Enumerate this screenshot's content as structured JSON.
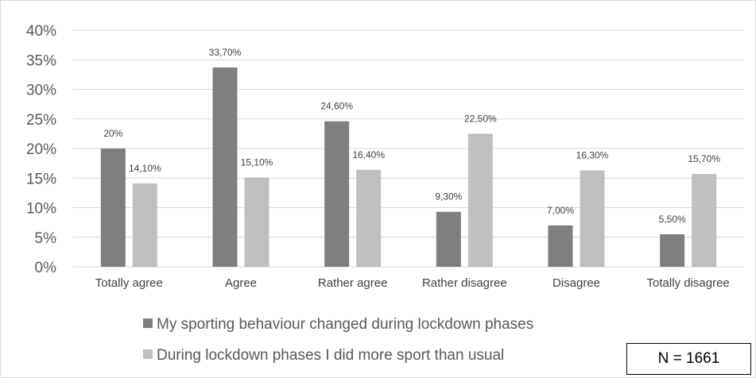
{
  "chart_data": {
    "type": "bar",
    "categories": [
      "Totally agree",
      "Agree",
      "Rather agree",
      "Rather disagree",
      "Disagree",
      "Totally disagree"
    ],
    "series": [
      {
        "name": "My sporting behaviour changed during lockdown phases",
        "values": [
          20,
          33.7,
          24.6,
          9.3,
          7.0,
          5.5
        ],
        "labels": [
          "20%",
          "33,70%",
          "24,60%",
          "9,30%",
          "7,00%",
          "5,50%"
        ],
        "color": "#7f7f7f"
      },
      {
        "name": "During lockdown phases I did more sport than usual",
        "values": [
          14.1,
          15.1,
          16.4,
          22.5,
          16.3,
          15.7
        ],
        "labels": [
          "14,10%",
          "15,10%",
          "16,40%",
          "22,50%",
          "16,30%",
          "15,70%"
        ],
        "color": "#bfbfbf"
      }
    ],
    "ylim": [
      0,
      40
    ],
    "yticks": [
      0,
      5,
      10,
      15,
      20,
      25,
      30,
      35,
      40
    ],
    "ytick_labels": [
      "0%",
      "5%",
      "10%",
      "15%",
      "20%",
      "25%",
      "30%",
      "35%",
      "40%"
    ],
    "grid": true,
    "legend_position": "bottom",
    "annotation": "N = 1661"
  }
}
